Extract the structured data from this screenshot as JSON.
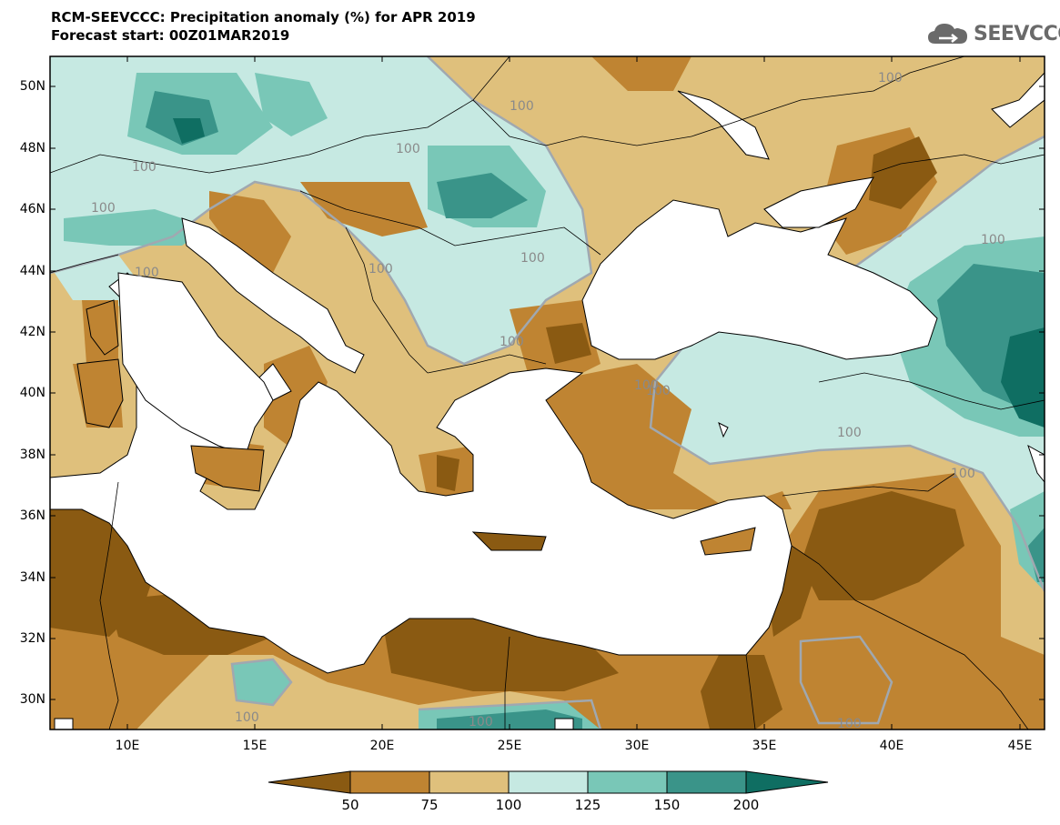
{
  "header": {
    "title_line1": "RCM-SEEVCCC: Precipitation anomaly (%) for APR 2019",
    "title_line2": "Forecast start: 00Z01MAR2019",
    "logo_text": "SEEVCCC"
  },
  "map": {
    "lat_ticks": [
      "50N",
      "48N",
      "46N",
      "44N",
      "42N",
      "40N",
      "38N",
      "36N",
      "34N",
      "32N",
      "30N"
    ],
    "lon_ticks": [
      "10E",
      "15E",
      "20E",
      "25E",
      "30E",
      "35E",
      "40E",
      "45E"
    ],
    "contour_label": "100"
  },
  "colorbar": {
    "labels": [
      "50",
      "75",
      "100",
      "125",
      "150",
      "200"
    ],
    "colors": {
      "below_50": "#8a5a12",
      "50_75": "#bf8432",
      "75_100": "#dfc07c",
      "100_125": "#c6e9e2",
      "125_150": "#79c7b7",
      "150_200": "#3a9489",
      "above_200": "#0f6e62"
    }
  }
}
